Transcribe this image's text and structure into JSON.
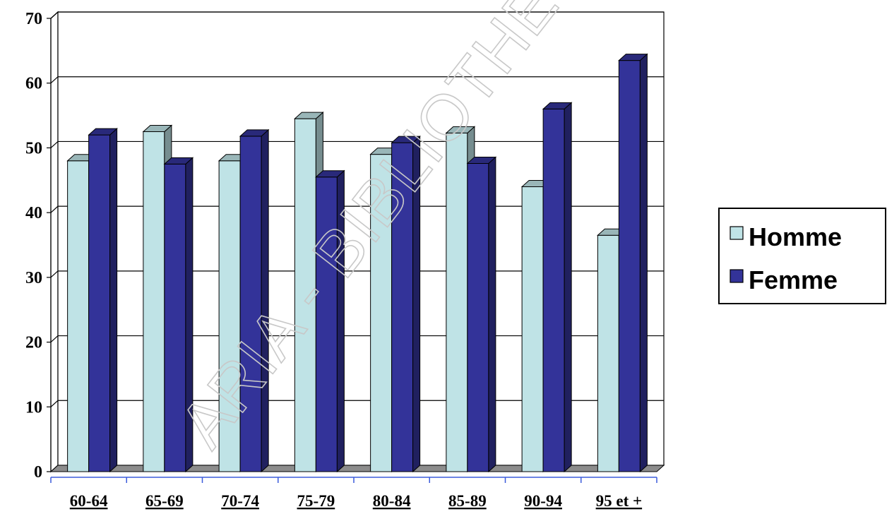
{
  "chart_data": {
    "type": "bar",
    "categories": [
      "60-64",
      "65-69",
      "70-74",
      "75-79",
      "80-84",
      "85-89",
      "90-94",
      "95 et +"
    ],
    "series": [
      {
        "name": "Homme",
        "values": [
          48,
          52.5,
          48,
          54.5,
          49,
          52.3,
          44,
          36.5
        ],
        "color": "#bfe3e6"
      },
      {
        "name": "Femme",
        "values": [
          52,
          47.5,
          51.8,
          45.5,
          50.8,
          47.6,
          56,
          63.5
        ],
        "color": "#333399"
      }
    ],
    "ylim": [
      0,
      70
    ],
    "yticks": [
      "0",
      "10",
      "20",
      "30",
      "40",
      "50",
      "60",
      "70"
    ],
    "grid": true,
    "legend_position": "right",
    "style": "3d-clustered-column"
  },
  "watermark": "ARIA - BIBLIOTHEQUE"
}
